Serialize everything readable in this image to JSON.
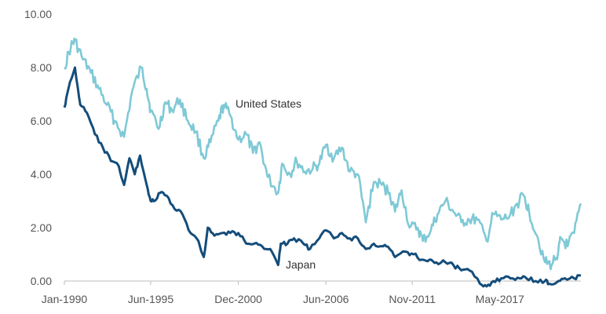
{
  "chart_data": {
    "type": "line",
    "y_ticks": [
      "0.00",
      "2.00",
      "4.00",
      "6.00",
      "8.00",
      "10.00"
    ],
    "x_ticks": [
      "Jan-1990",
      "Jun-1995",
      "Dec-2000",
      "Jun-2006",
      "Nov-2011",
      "May-2017"
    ],
    "x_tick_dates": [
      "1990-01",
      "1995-06",
      "2000-12",
      "2006-06",
      "2011-11",
      "2017-05"
    ],
    "x_range": [
      "1990-01",
      "2022-06"
    ],
    "ylim": [
      0,
      10
    ],
    "grid": false,
    "legend": "none",
    "series": [
      {
        "name": "United States",
        "color": "#7fc9d6",
        "x": [
          "1990-01",
          "1990-06",
          "1990-09",
          "1991-03",
          "1991-09",
          "1992-03",
          "1992-09",
          "1993-03",
          "1993-10",
          "1994-04",
          "1994-11",
          "1995-03",
          "1995-06",
          "1995-12",
          "1996-05",
          "1996-10",
          "1997-04",
          "1997-10",
          "1998-04",
          "1998-10",
          "1999-03",
          "1999-09",
          "2000-01",
          "2000-06",
          "2000-12",
          "2001-06",
          "2001-11",
          "2002-04",
          "2002-10",
          "2003-06",
          "2003-09",
          "2004-03",
          "2004-08",
          "2005-02",
          "2005-08",
          "2006-01",
          "2006-06",
          "2006-12",
          "2007-06",
          "2007-12",
          "2008-06",
          "2008-12",
          "2009-06",
          "2009-12",
          "2010-06",
          "2010-10",
          "2011-03",
          "2011-09",
          "2012-03",
          "2012-07",
          "2013-01",
          "2013-06",
          "2013-12",
          "2014-06",
          "2014-12",
          "2015-06",
          "2015-12",
          "2016-07",
          "2016-12",
          "2017-06",
          "2017-12",
          "2018-06",
          "2018-11",
          "2019-03",
          "2019-09",
          "2020-03",
          "2020-08",
          "2021-01",
          "2021-03",
          "2021-08",
          "2022-01",
          "2022-06"
        ],
        "values": [
          8.0,
          8.8,
          9.0,
          8.3,
          7.8,
          7.2,
          6.6,
          6.0,
          5.4,
          7.1,
          8.0,
          7.2,
          6.4,
          5.7,
          6.7,
          6.4,
          6.8,
          6.0,
          5.6,
          4.6,
          5.2,
          6.0,
          6.6,
          6.2,
          5.3,
          5.5,
          4.8,
          5.2,
          3.9,
          3.3,
          4.4,
          4.0,
          4.5,
          4.1,
          4.2,
          4.4,
          5.1,
          4.6,
          5.0,
          4.1,
          4.0,
          2.2,
          3.7,
          3.6,
          3.3,
          2.6,
          3.4,
          2.0,
          2.0,
          1.5,
          1.9,
          2.5,
          3.0,
          2.6,
          2.2,
          2.3,
          2.3,
          1.5,
          2.5,
          2.3,
          2.4,
          2.9,
          3.2,
          2.6,
          1.7,
          0.7,
          0.6,
          1.1,
          1.6,
          1.3,
          1.8,
          2.9
        ]
      },
      {
        "name": "Japan",
        "color": "#144d7a",
        "x": [
          "1990-01",
          "1990-04",
          "1990-09",
          "1991-01",
          "1991-06",
          "1991-12",
          "1992-06",
          "1992-12",
          "1993-06",
          "1993-10",
          "1994-02",
          "1994-06",
          "1994-10",
          "1995-03",
          "1995-06",
          "1995-09",
          "1996-01",
          "1996-06",
          "1996-12",
          "1997-06",
          "1997-12",
          "1998-06",
          "1998-10",
          "1999-01",
          "1999-06",
          "1999-12",
          "2000-06",
          "2000-12",
          "2001-06",
          "2001-12",
          "2002-06",
          "2002-12",
          "2003-06",
          "2003-08",
          "2004-01",
          "2004-06",
          "2005-01",
          "2005-06",
          "2006-01",
          "2006-06",
          "2006-12",
          "2007-06",
          "2007-12",
          "2008-06",
          "2008-12",
          "2009-06",
          "2010-01",
          "2010-06",
          "2010-10",
          "2011-06",
          "2011-12",
          "2012-06",
          "2012-12",
          "2013-05",
          "2013-12",
          "2014-06",
          "2014-12",
          "2015-06",
          "2016-02",
          "2016-07",
          "2016-12",
          "2017-06",
          "2018-01",
          "2018-08",
          "2019-01",
          "2019-08",
          "2020-03",
          "2020-06",
          "2021-01",
          "2021-06",
          "2022-01",
          "2022-06"
        ],
        "values": [
          6.5,
          7.2,
          8.0,
          6.6,
          6.3,
          5.5,
          5.0,
          4.5,
          4.3,
          3.6,
          4.6,
          4.0,
          4.7,
          3.6,
          3.0,
          3.0,
          3.3,
          3.2,
          2.7,
          2.5,
          1.8,
          1.5,
          0.9,
          2.0,
          1.7,
          1.8,
          1.8,
          1.8,
          1.4,
          1.4,
          1.3,
          1.2,
          0.6,
          1.4,
          1.4,
          1.6,
          1.4,
          1.2,
          1.6,
          1.9,
          1.6,
          1.8,
          1.6,
          1.6,
          1.2,
          1.4,
          1.3,
          1.2,
          0.9,
          1.1,
          1.0,
          0.8,
          0.8,
          0.7,
          0.7,
          0.6,
          0.4,
          0.4,
          -0.1,
          -0.2,
          0.0,
          0.1,
          0.1,
          0.1,
          0.1,
          0.0,
          0.0,
          -0.1,
          0.0,
          0.1,
          0.1,
          0.2
        ]
      }
    ]
  },
  "colors": {
    "axis": "#bbbbbb",
    "tick_text": "#555555"
  }
}
